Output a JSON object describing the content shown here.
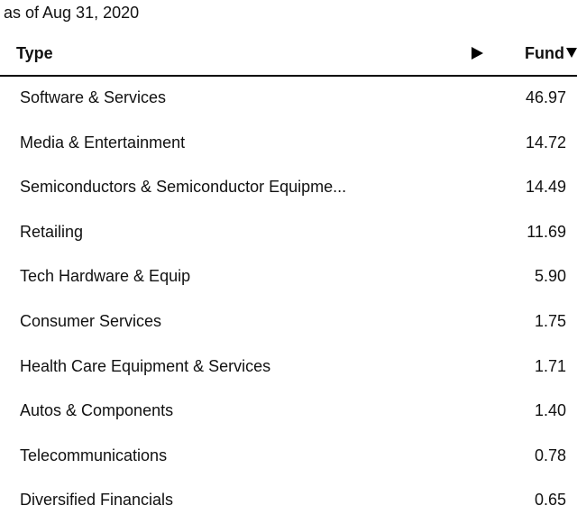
{
  "as_of": "as of Aug 31, 2020",
  "table": {
    "columns": {
      "type_label": "Type",
      "fund_label": "Fund"
    },
    "rows": [
      {
        "type": "Software & Services",
        "fund": "46.97"
      },
      {
        "type": "Media & Entertainment",
        "fund": "14.72"
      },
      {
        "type": "Semiconductors & Semiconductor Equipme...",
        "fund": "14.49"
      },
      {
        "type": "Retailing",
        "fund": "11.69"
      },
      {
        "type": "Tech Hardware & Equip",
        "fund": "5.90"
      },
      {
        "type": "Consumer Services",
        "fund": "1.75"
      },
      {
        "type": "Health Care Equipment & Services",
        "fund": "1.71"
      },
      {
        "type": "Autos & Components",
        "fund": "1.40"
      },
      {
        "type": "Telecommunications",
        "fund": "0.78"
      },
      {
        "type": "Diversified Financials",
        "fund": "0.65"
      }
    ]
  },
  "icons": {
    "expand": "play-right-arrow-icon",
    "sort": "sort-descending-icon"
  }
}
